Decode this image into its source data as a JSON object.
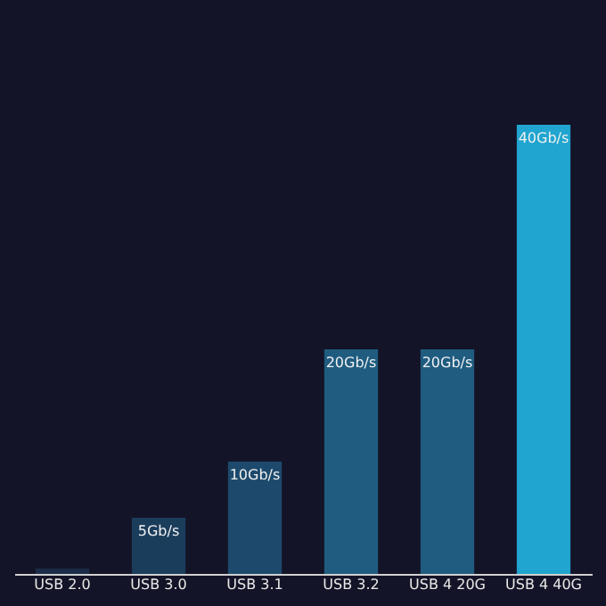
{
  "chart_data": {
    "type": "bar",
    "tick_labels": "x",
    "categories": [
      "USB 2.0",
      "USB 3.0",
      "USB 3.1",
      "USB 3.2",
      "USB 4 20G",
      "USB 4 40G"
    ],
    "values": [
      0.48,
      5,
      10,
      20,
      20,
      40
    ],
    "colors": [
      "#1a2c48",
      "#1b3d5c",
      "#1d4a6c",
      "#1f5c80",
      "#1f5c80",
      "#1fa5cf"
    ],
    "value_labels": [
      null,
      "5Gb/s",
      "10Gb/s",
      "20Gb/s",
      "20Gb/s",
      "40Gb/s"
    ],
    "grid": false
  }
}
